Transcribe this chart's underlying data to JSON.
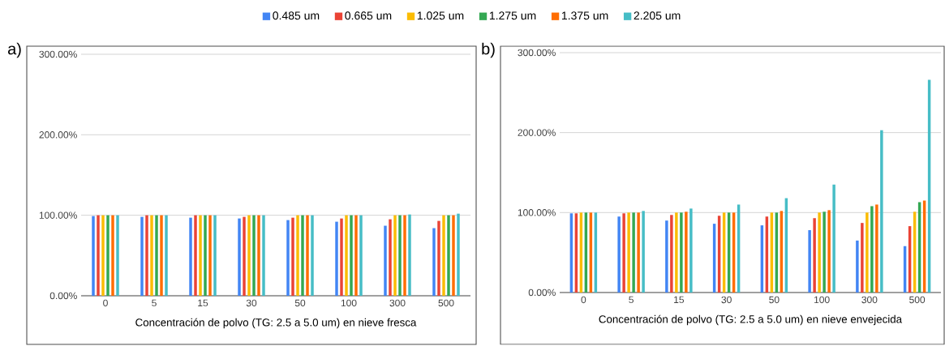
{
  "chart_data": [
    {
      "type": "bar",
      "xlabel": "Concentración de polvo (TG: 2.5 a 5.0 um) en nieve fresca",
      "annotations": [
        "a)"
      ],
      "categories": [
        "0",
        "5",
        "15",
        "30",
        "50",
        "100",
        "300",
        "500"
      ],
      "ylim": [
        0,
        300
      ],
      "yticks": [
        {
          "value": 0,
          "label": "0.00%"
        },
        {
          "value": 100,
          "label": "100.00%"
        },
        {
          "value": 200,
          "label": "200.00%"
        },
        {
          "value": 300,
          "label": "300.00%"
        }
      ],
      "grid": "y",
      "legend": "top",
      "series": [
        {
          "name": "0.485 um",
          "color": "#4285f4",
          "values": [
            99,
            98,
            97,
            96,
            94,
            92,
            87,
            84
          ]
        },
        {
          "name": "0.665 um",
          "color": "#ea4335",
          "values": [
            100,
            100,
            100,
            98,
            97,
            96,
            95,
            93
          ]
        },
        {
          "name": "1.025 um",
          "color": "#fbbc04",
          "values": [
            100,
            100,
            100,
            100,
            100,
            100,
            100,
            100
          ]
        },
        {
          "name": "1.275 um",
          "color": "#34a853",
          "values": [
            100,
            100,
            100,
            100,
            100,
            100,
            100,
            100
          ]
        },
        {
          "name": "1.375 um",
          "color": "#ff6d01",
          "values": [
            100,
            100,
            100,
            100,
            100,
            100,
            100,
            100
          ]
        },
        {
          "name": "2.205 um",
          "color": "#46bdc6",
          "values": [
            100,
            100,
            100,
            100,
            100,
            100,
            101,
            102
          ]
        }
      ]
    },
    {
      "type": "bar",
      "xlabel": "Concentración de polvo (TG: 2.5 a 5.0 um) en nieve envejecida",
      "annotations": [
        "b)"
      ],
      "categories": [
        "0",
        "5",
        "15",
        "30",
        "50",
        "100",
        "300",
        "500"
      ],
      "ylim": [
        0,
        300
      ],
      "yticks": [
        {
          "value": 0,
          "label": "0.00%"
        },
        {
          "value": 100,
          "label": "100.00%"
        },
        {
          "value": 200,
          "label": "200.00%"
        },
        {
          "value": 300,
          "label": "300.00%"
        }
      ],
      "grid": "y",
      "series": [
        {
          "color": "#4285f4",
          "values": [
            99,
            95,
            90,
            86,
            84,
            78,
            65,
            58
          ]
        },
        {
          "color": "#ea4335",
          "values": [
            99,
            99,
            97,
            96,
            95,
            93,
            87,
            83
          ]
        },
        {
          "color": "#fbbc04",
          "values": [
            100,
            100,
            100,
            100,
            100,
            100,
            100,
            101
          ]
        },
        {
          "color": "#34a853",
          "values": [
            100,
            100,
            100,
            100,
            100,
            101,
            108,
            113
          ]
        },
        {
          "color": "#ff6d01",
          "values": [
            100,
            100,
            101,
            100,
            102,
            103,
            110,
            115
          ]
        },
        {
          "color": "#46bdc6",
          "values": [
            100,
            102,
            105,
            110,
            118,
            135,
            203,
            266
          ]
        }
      ]
    }
  ]
}
